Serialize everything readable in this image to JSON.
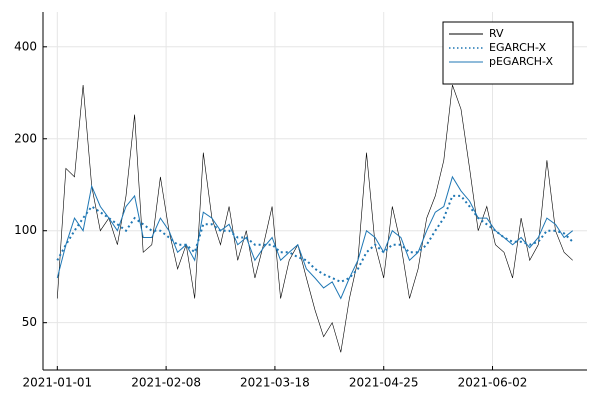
{
  "chart_data": {
    "type": "line",
    "log_y": true,
    "grid": true,
    "legend": "top-right",
    "x": [
      "2021-01-01",
      "2021-01-04",
      "2021-01-07",
      "2021-01-10",
      "2021-01-13",
      "2021-01-16",
      "2021-01-19",
      "2021-01-22",
      "2021-01-25",
      "2021-01-28",
      "2021-01-31",
      "2021-02-03",
      "2021-02-06",
      "2021-02-09",
      "2021-02-12",
      "2021-02-15",
      "2021-02-18",
      "2021-02-21",
      "2021-02-24",
      "2021-02-27",
      "2021-03-02",
      "2021-03-05",
      "2021-03-08",
      "2021-03-11",
      "2021-03-14",
      "2021-03-17",
      "2021-03-20",
      "2021-03-23",
      "2021-03-26",
      "2021-03-29",
      "2021-04-01",
      "2021-04-04",
      "2021-04-07",
      "2021-04-10",
      "2021-04-13",
      "2021-04-16",
      "2021-04-19",
      "2021-04-22",
      "2021-04-25",
      "2021-04-28",
      "2021-05-01",
      "2021-05-04",
      "2021-05-07",
      "2021-05-10",
      "2021-05-13",
      "2021-05-16",
      "2021-05-19",
      "2021-05-22",
      "2021-05-25",
      "2021-05-28",
      "2021-05-31",
      "2021-06-03",
      "2021-06-06",
      "2021-06-09",
      "2021-06-12",
      "2021-06-15",
      "2021-06-18",
      "2021-06-21",
      "2021-06-24",
      "2021-06-27",
      "2021-06-30"
    ],
    "series": [
      {
        "name": "RV",
        "color": "#000000",
        "style": "solid",
        "width": 0.6,
        "values": [
          60,
          160,
          150,
          300,
          140,
          100,
          110,
          90,
          130,
          240,
          85,
          90,
          150,
          100,
          75,
          90,
          60,
          180,
          110,
          90,
          120,
          80,
          100,
          70,
          90,
          120,
          60,
          80,
          90,
          70,
          55,
          45,
          50,
          40,
          60,
          80,
          180,
          90,
          70,
          120,
          90,
          60,
          75,
          110,
          130,
          170,
          300,
          250,
          160,
          100,
          120,
          90,
          85,
          70,
          110,
          80,
          90,
          170,
          100,
          85,
          80
        ]
      },
      {
        "name": "EGARCH-X",
        "color": "#1f77b4",
        "style": "dotted",
        "width": 2,
        "values": [
          80,
          90,
          100,
          110,
          120,
          115,
          110,
          105,
          100,
          110,
          105,
          100,
          100,
          95,
          90,
          90,
          85,
          105,
          105,
          100,
          100,
          95,
          95,
          90,
          90,
          90,
          85,
          85,
          82,
          80,
          75,
          72,
          70,
          68,
          70,
          75,
          85,
          90,
          85,
          90,
          90,
          85,
          85,
          90,
          100,
          110,
          130,
          130,
          120,
          110,
          105,
          100,
          95,
          92,
          92,
          90,
          92,
          100,
          100,
          98,
          92
        ]
      },
      {
        "name": "pEGARCH-X",
        "color": "#1f77b4",
        "style": "solid",
        "width": 1,
        "values": [
          70,
          90,
          110,
          100,
          140,
          120,
          110,
          100,
          120,
          130,
          95,
          95,
          110,
          100,
          85,
          90,
          80,
          115,
          110,
          100,
          105,
          90,
          95,
          80,
          88,
          95,
          80,
          85,
          90,
          75,
          70,
          65,
          68,
          60,
          70,
          80,
          100,
          95,
          85,
          100,
          95,
          80,
          85,
          100,
          115,
          120,
          150,
          135,
          125,
          110,
          110,
          100,
          95,
          90,
          95,
          88,
          95,
          110,
          105,
          95,
          100
        ]
      }
    ],
    "xlim": [
      "2020-12-27",
      "2021-07-05"
    ],
    "xticks": [
      "2021-01-01",
      "2021-02-08",
      "2021-03-18",
      "2021-04-25",
      "2021-06-02"
    ],
    "ylim": [
      35,
      520
    ],
    "yticks": [
      50,
      100,
      200,
      400
    ]
  }
}
